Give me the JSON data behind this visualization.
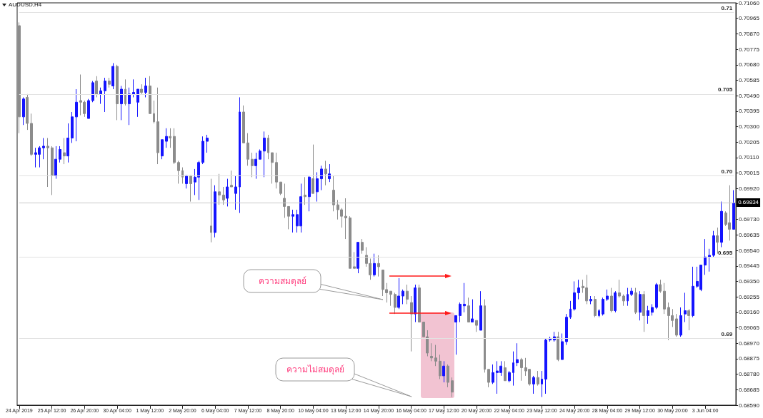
{
  "chart_data": {
    "type": "candlestick",
    "title": "AUDUSD,H4",
    "categories": [
      "24 Apr 2019",
      null,
      null,
      null,
      null,
      null,
      null,
      null,
      "25 Apr 12:00",
      null,
      null,
      null,
      null,
      null,
      null,
      null,
      "26 Apr 20:00",
      null,
      null,
      null,
      null,
      null,
      null,
      null,
      "30 Apr 04:00",
      null,
      null,
      null,
      null,
      null,
      null,
      null,
      "1 May 12:00",
      null,
      null,
      null,
      null,
      null,
      null,
      null,
      "2 May 20:00",
      null,
      null,
      null,
      null,
      null,
      null,
      null,
      "6 May 04:00",
      null,
      null,
      null,
      null,
      null,
      null,
      null,
      "7 May 12:00",
      null,
      null,
      null,
      null,
      null,
      null,
      null,
      "8 May 20:00",
      null,
      null,
      null,
      null,
      null,
      null,
      null,
      "10 May 04:00",
      null,
      null,
      null,
      null,
      null,
      null,
      null,
      "13 May 12:00",
      null,
      null,
      null,
      null,
      null,
      null,
      null,
      "14 May 20:00",
      null,
      null,
      null,
      null,
      null,
      null,
      null,
      "16 May 04:00",
      null,
      null,
      null,
      null,
      null,
      null,
      null,
      "17 May 12:00",
      null,
      null,
      null,
      null,
      null,
      null,
      null,
      "20 May 20:00",
      null,
      null,
      null,
      null,
      null,
      null,
      null,
      "22 May 04:00",
      null,
      null,
      null,
      null,
      null,
      null,
      null,
      "23 May 12:00",
      null,
      null,
      null,
      null,
      null,
      null,
      null,
      "24 May 20:00",
      null,
      null,
      null,
      null,
      null,
      null,
      null,
      "28 May 04:00",
      null,
      null,
      null,
      null,
      null,
      null,
      null,
      "29 May 12:00",
      null,
      null,
      null,
      null,
      null,
      null,
      null,
      "30 May 20:00",
      null,
      null,
      null,
      null,
      null,
      null,
      null,
      "3 Jun 04:00",
      null,
      null,
      null,
      null,
      null,
      null,
      null
    ],
    "ohlc": [
      [
        0.7092,
        0.7094,
        0.7026,
        0.7036
      ],
      [
        0.7036,
        0.7048,
        0.7031,
        0.7047
      ],
      [
        0.7048,
        0.705,
        0.7028,
        0.7032
      ],
      [
        0.7032,
        0.7038,
        0.7012,
        0.7013
      ],
      [
        0.7013,
        0.7017,
        0.7005,
        0.7014
      ],
      [
        0.7013,
        0.7018,
        0.7005,
        0.7017
      ],
      [
        0.7017,
        0.7023,
        0.701,
        0.7018
      ],
      [
        0.7018,
        0.7023,
        0.6993,
        0.7017
      ],
      [
        0.7017,
        0.7018,
        0.6988,
        0.7
      ],
      [
        0.7,
        0.7018,
        0.6998,
        0.701
      ],
      [
        0.701,
        0.7018,
        0.7008,
        0.7016
      ],
      [
        0.7014,
        0.7023,
        0.7007,
        0.7012
      ],
      [
        0.7012,
        0.7032,
        0.7008,
        0.7023
      ],
      [
        0.7023,
        0.7039,
        0.702,
        0.7036
      ],
      [
        0.7036,
        0.7053,
        0.7021,
        0.7045
      ],
      [
        0.7046,
        0.7062,
        0.7037,
        0.7045
      ],
      [
        0.7045,
        0.7046,
        0.7036,
        0.7038
      ],
      [
        0.7035,
        0.7047,
        0.7035,
        0.7046
      ],
      [
        0.7046,
        0.7058,
        0.7045,
        0.7057
      ],
      [
        0.7058,
        0.7061,
        0.7048,
        0.705
      ],
      [
        0.705,
        0.7054,
        0.7044,
        0.7052
      ],
      [
        0.7052,
        0.706,
        0.7039,
        0.7058
      ],
      [
        0.7058,
        0.706,
        0.7054,
        0.7056
      ],
      [
        0.7055,
        0.7069,
        0.7053,
        0.7067
      ],
      [
        0.7067,
        0.7068,
        0.7034,
        0.7044
      ],
      [
        0.7044,
        0.7055,
        0.7034,
        0.7053
      ],
      [
        0.7053,
        0.7059,
        0.7043,
        0.7044
      ],
      [
        0.7044,
        0.7054,
        0.7031,
        0.705
      ],
      [
        0.705,
        0.7059,
        0.7048,
        0.7051
      ],
      [
        0.7045,
        0.7053,
        0.7036,
        0.7053
      ],
      [
        0.7053,
        0.7056,
        0.705,
        0.7051
      ],
      [
        0.7051,
        0.706,
        0.7048,
        0.7055
      ],
      [
        0.7055,
        0.7061,
        0.7038,
        0.7038
      ],
      [
        0.7038,
        0.7046,
        0.7032,
        0.7033
      ],
      [
        0.7033,
        0.7054,
        0.7007,
        0.7014
      ],
      [
        0.7012,
        0.7022,
        0.701,
        0.7022
      ],
      [
        0.7021,
        0.7029,
        0.7017,
        0.7024
      ],
      [
        0.7024,
        0.7029,
        0.7017,
        0.7023
      ],
      [
        0.7024,
        0.7029,
        0.7007,
        0.7008
      ],
      [
        0.7008,
        0.7009,
        0.6995,
        0.7003
      ],
      [
        0.7003,
        0.7005,
        0.6995,
        0.6999
      ],
      [
        0.6995,
        0.7,
        0.6992,
        0.7
      ],
      [
        0.7,
        0.7,
        0.6984,
        0.6995
      ],
      [
        0.6996,
        0.7004,
        0.6988,
        0.6999
      ],
      [
        0.6999,
        0.7009,
        0.6985,
        0.7008
      ],
      [
        0.7008,
        0.7024,
        0.7007,
        0.7021
      ],
      [
        0.7021,
        0.7025,
        0.7014,
        0.7023
      ],
      [
        0.6969,
        0.6998,
        0.6959,
        0.6965
      ],
      [
        0.6965,
        0.6994,
        0.6962,
        0.699
      ],
      [
        0.699,
        0.7001,
        0.6982,
        0.6988
      ],
      [
        0.6988,
        0.6993,
        0.6982,
        0.6985
      ],
      [
        0.6986,
        0.6998,
        0.6981,
        0.6993
      ],
      [
        0.6994,
        0.7003,
        0.6993,
        0.6993
      ],
      [
        0.6989,
        0.7,
        0.6979,
        0.6993
      ],
      [
        0.6993,
        0.7048,
        0.6977,
        0.7039
      ],
      [
        0.7039,
        0.7043,
        0.702,
        0.702
      ],
      [
        0.702,
        0.7026,
        0.7006,
        0.701
      ],
      [
        0.701,
        0.7014,
        0.6999,
        0.7006
      ],
      [
        0.7006,
        0.7014,
        0.6998,
        0.701
      ],
      [
        0.701,
        0.7016,
        0.701,
        0.7015
      ],
      [
        0.7015,
        0.7027,
        0.6999,
        0.7023
      ],
      [
        0.7023,
        0.7025,
        0.701,
        0.7014
      ],
      [
        0.7014,
        0.7014,
        0.6995,
        0.7008
      ],
      [
        0.7008,
        0.7014,
        0.6992,
        0.6996
      ],
      [
        0.6996,
        0.6996,
        0.6988,
        0.6989
      ],
      [
        0.6986,
        0.6995,
        0.6974,
        0.6981
      ],
      [
        0.6981,
        0.6981,
        0.6967,
        0.6975
      ],
      [
        0.6975,
        0.6979,
        0.6965,
        0.6976
      ],
      [
        0.6969,
        0.6979,
        0.6965,
        0.6976
      ],
      [
        0.6969,
        0.6995,
        0.6965,
        0.6987
      ],
      [
        0.6988,
        0.6999,
        0.6982,
        0.6987
      ],
      [
        0.6987,
        0.7,
        0.6978,
        0.6999
      ],
      [
        0.6998,
        0.7019,
        0.6989,
        0.6989
      ],
      [
        0.699,
        0.7002,
        0.6984,
        0.6998
      ],
      [
        0.6998,
        0.7006,
        0.6991,
        0.7004
      ],
      [
        0.7004,
        0.7009,
        0.6994,
        0.7001
      ],
      [
        0.6998,
        0.7007,
        0.6996,
        0.7001
      ],
      [
        0.6991,
        0.7,
        0.6978,
        0.6982
      ],
      [
        0.6982,
        0.6985,
        0.6973,
        0.6979
      ],
      [
        0.6979,
        0.698,
        0.6968,
        0.6975
      ],
      [
        0.6975,
        0.6986,
        0.6961,
        0.6974
      ],
      [
        0.6974,
        0.6975,
        0.6943,
        0.6943
      ],
      [
        0.6944,
        0.6953,
        0.6943,
        0.6943
      ],
      [
        0.6943,
        0.6959,
        0.694,
        0.6959
      ],
      [
        0.6959,
        0.6961,
        0.6952,
        0.6954
      ],
      [
        0.6951,
        0.6956,
        0.6944,
        0.6946
      ],
      [
        0.6946,
        0.6949,
        0.6936,
        0.6939
      ],
      [
        0.6939,
        0.6952,
        0.6938,
        0.6946
      ],
      [
        0.6946,
        0.6951,
        0.6938,
        0.6944
      ],
      [
        0.6942,
        0.6942,
        0.6926,
        0.693
      ],
      [
        0.693,
        0.6934,
        0.6922,
        0.6928
      ],
      [
        0.6929,
        0.6929,
        0.692,
        0.6927
      ],
      [
        0.6927,
        0.6928,
        0.6915,
        0.6919
      ],
      [
        0.6919,
        0.6937,
        0.6918,
        0.6926
      ],
      [
        0.6926,
        0.693,
        0.6921,
        0.6929
      ],
      [
        0.6929,
        0.6933,
        0.6921,
        0.6924
      ],
      [
        0.6922,
        0.6926,
        0.6892,
        0.6915
      ],
      [
        0.6915,
        0.6933,
        0.691,
        0.6931
      ],
      [
        0.6931,
        0.6933,
        0.691,
        0.691
      ],
      [
        0.691,
        0.691,
        0.6901,
        0.6901
      ],
      [
        0.6901,
        0.6905,
        0.6889,
        0.6891
      ],
      [
        0.6889,
        0.6897,
        0.6886,
        0.6888
      ],
      [
        0.6888,
        0.6896,
        0.6883,
        0.6886
      ],
      [
        0.6886,
        0.689,
        0.6875,
        0.6877
      ],
      [
        0.6877,
        0.6886,
        0.6873,
        0.6883
      ],
      [
        0.6883,
        0.6884,
        0.687,
        0.6873
      ],
      [
        0.6874,
        0.6876,
        0.6864,
        0.6867
      ],
      [
        0.691,
        0.6914,
        0.689,
        0.6914
      ],
      [
        0.6914,
        0.6922,
        0.691,
        0.6921
      ],
      [
        0.692,
        0.6934,
        0.6916,
        0.6921
      ],
      [
        0.692,
        0.6925,
        0.691,
        0.691
      ],
      [
        0.691,
        0.6924,
        0.691,
        0.6912
      ],
      [
        0.6911,
        0.6911,
        0.6904,
        0.6908
      ],
      [
        0.6905,
        0.6929,
        0.6905,
        0.692
      ],
      [
        0.692,
        0.6924,
        0.6879,
        0.6881
      ],
      [
        0.6881,
        0.6881,
        0.687,
        0.6873
      ],
      [
        0.6873,
        0.6884,
        0.6872,
        0.6879
      ],
      [
        0.6879,
        0.6886,
        0.6866,
        0.688
      ],
      [
        0.6879,
        0.6886,
        0.6877,
        0.6883
      ],
      [
        0.6882,
        0.6886,
        0.6874,
        0.6874
      ],
      [
        0.6874,
        0.688,
        0.6873,
        0.6879
      ],
      [
        0.6879,
        0.6892,
        0.6871,
        0.6885
      ],
      [
        0.6885,
        0.6897,
        0.6883,
        0.6887
      ],
      [
        0.6887,
        0.6888,
        0.6874,
        0.6882
      ],
      [
        0.6882,
        0.6888,
        0.6877,
        0.688
      ],
      [
        0.6881,
        0.6881,
        0.6871,
        0.6872
      ],
      [
        0.6872,
        0.6877,
        0.6866,
        0.6876
      ],
      [
        0.6876,
        0.688,
        0.6871,
        0.6872
      ],
      [
        0.6872,
        0.688,
        0.6864,
        0.6875
      ],
      [
        0.6875,
        0.69,
        0.6866,
        0.6899
      ],
      [
        0.6899,
        0.6901,
        0.6898,
        0.69
      ],
      [
        0.6899,
        0.6904,
        0.6898,
        0.6901
      ],
      [
        0.6901,
        0.6904,
        0.6886,
        0.6887
      ],
      [
        0.6887,
        0.6903,
        0.6887,
        0.6898
      ],
      [
        0.6898,
        0.6915,
        0.6896,
        0.6913
      ],
      [
        0.6913,
        0.6923,
        0.6912,
        0.6918
      ],
      [
        0.6918,
        0.6935,
        0.6917,
        0.6928
      ],
      [
        0.6928,
        0.6936,
        0.6924,
        0.6931
      ],
      [
        0.6932,
        0.6936,
        0.6928,
        0.6931
      ],
      [
        0.6931,
        0.6939,
        0.6921,
        0.6923
      ],
      [
        0.6923,
        0.6926,
        0.6921,
        0.6924
      ],
      [
        0.6924,
        0.6926,
        0.6913,
        0.6914
      ],
      [
        0.6914,
        0.6918,
        0.6913,
        0.6917
      ],
      [
        0.6915,
        0.6925,
        0.6914,
        0.6924
      ],
      [
        0.6924,
        0.693,
        0.6923,
        0.6926
      ],
      [
        0.6926,
        0.6931,
        0.6916,
        0.6917
      ],
      [
        0.6917,
        0.6929,
        0.6916,
        0.6928
      ],
      [
        0.6928,
        0.6936,
        0.6925,
        0.6926
      ],
      [
        0.6926,
        0.6927,
        0.692,
        0.6923
      ],
      [
        0.6923,
        0.6931,
        0.692,
        0.6927
      ],
      [
        0.6927,
        0.6931,
        0.6926,
        0.6929
      ],
      [
        0.6928,
        0.6931,
        0.6915,
        0.6916
      ],
      [
        0.6916,
        0.6929,
        0.6911,
        0.6927
      ],
      [
        0.6927,
        0.6929,
        0.6904,
        0.6914
      ],
      [
        0.6914,
        0.692,
        0.6909,
        0.6917
      ],
      [
        0.6916,
        0.6921,
        0.6914,
        0.6919
      ],
      [
        0.6919,
        0.6934,
        0.6918,
        0.6933
      ],
      [
        0.6933,
        0.6936,
        0.6928,
        0.6929
      ],
      [
        0.6929,
        0.6934,
        0.6915,
        0.6918
      ],
      [
        0.6919,
        0.6922,
        0.6899,
        0.6914
      ],
      [
        0.6914,
        0.6918,
        0.6907,
        0.6911
      ],
      [
        0.6912,
        0.6915,
        0.6901,
        0.6902
      ],
      [
        0.6902,
        0.6919,
        0.6901,
        0.6914
      ],
      [
        0.6915,
        0.6928,
        0.691,
        0.6917
      ],
      [
        0.6917,
        0.6918,
        0.6905,
        0.6914
      ],
      [
        0.6914,
        0.6944,
        0.6913,
        0.6932
      ],
      [
        0.6932,
        0.6944,
        0.6931,
        0.6935
      ],
      [
        0.693,
        0.6945,
        0.6929,
        0.6945
      ],
      [
        0.6945,
        0.6961,
        0.6939,
        0.695
      ],
      [
        0.695,
        0.6955,
        0.6941,
        0.6951
      ],
      [
        0.6951,
        0.6966,
        0.695,
        0.6963
      ],
      [
        0.6963,
        0.6968,
        0.6952,
        0.6959
      ],
      [
        0.6959,
        0.6984,
        0.6956,
        0.6978
      ],
      [
        0.6977,
        0.6978,
        0.6969,
        0.697
      ],
      [
        0.6971,
        0.6994,
        0.696,
        0.6967
      ],
      [
        0.6967,
        0.6991,
        0.6967,
        0.6983
      ]
    ],
    "colors": [
      "#8c8c8c",
      "#1414ff",
      "#8c8c8c",
      "#8c8c8c",
      "#1414ff",
      "#1414ff",
      "#1414ff",
      "#8c8c8c",
      "#8c8c8c",
      "#1414ff",
      "#1414ff",
      "#8c8c8c",
      "#1414ff",
      "#1414ff",
      "#1414ff",
      "#8c8c8c",
      "#8c8c8c",
      "#1414ff",
      "#1414ff",
      "#8c8c8c",
      "#1414ff",
      "#1414ff",
      "#8c8c8c",
      "#1414ff",
      "#8c8c8c",
      "#1414ff",
      "#8c8c8c",
      "#1414ff",
      "#1414ff",
      "#1414ff",
      "#8c8c8c",
      "#1414ff",
      "#8c8c8c",
      "#8c8c8c",
      "#8c8c8c",
      "#1414ff",
      "#1414ff",
      "#8c8c8c",
      "#8c8c8c",
      "#8c8c8c",
      "#8c8c8c",
      "#1414ff",
      "#8c8c8c",
      "#1414ff",
      "#1414ff",
      "#1414ff",
      "#1414ff",
      "#8c8c8c",
      "#1414ff",
      "#8c8c8c",
      "#8c8c8c",
      "#1414ff",
      "#8c8c8c",
      "#1414ff",
      "#1414ff",
      "#8c8c8c",
      "#8c8c8c",
      "#8c8c8c",
      "#1414ff",
      "#1414ff",
      "#1414ff",
      "#8c8c8c",
      "#8c8c8c",
      "#8c8c8c",
      "#8c8c8c",
      "#8c8c8c",
      "#8c8c8c",
      "#1414ff",
      "#1414ff",
      "#1414ff",
      "#8c8c8c",
      "#1414ff",
      "#8c8c8c",
      "#1414ff",
      "#1414ff",
      "#8c8c8c",
      "#1414ff",
      "#8c8c8c",
      "#8c8c8c",
      "#8c8c8c",
      "#8c8c8c",
      "#8c8c8c",
      "#8c8c8c",
      "#1414ff",
      "#8c8c8c",
      "#8c8c8c",
      "#8c8c8c",
      "#1414ff",
      "#8c8c8c",
      "#8c8c8c",
      "#8c8c8c",
      "#8c8c8c",
      "#8c8c8c",
      "#1414ff",
      "#1414ff",
      "#8c8c8c",
      "#8c8c8c",
      "#1414ff",
      "#8c8c8c",
      "#8c8c8c",
      "#8c8c8c",
      "#8c8c8c",
      "#8c8c8c",
      "#8c8c8c",
      "#1414ff",
      "#8c8c8c",
      "#8c8c8c",
      "#1414ff",
      "#1414ff",
      "#1414ff",
      "#8c8c8c",
      "#1414ff",
      "#8c8c8c",
      "#1414ff",
      "#8c8c8c",
      "#8c8c8c",
      "#1414ff",
      "#1414ff",
      "#1414ff",
      "#8c8c8c",
      "#1414ff",
      "#1414ff",
      "#1414ff",
      "#8c8c8c",
      "#8c8c8c",
      "#8c8c8c",
      "#1414ff",
      "#8c8c8c",
      "#1414ff",
      "#1414ff",
      "#1414ff",
      "#1414ff",
      "#8c8c8c",
      "#1414ff",
      "#1414ff",
      "#1414ff",
      "#1414ff",
      "#1414ff",
      "#8c8c8c",
      "#8c8c8c",
      "#1414ff",
      "#8c8c8c",
      "#1414ff",
      "#1414ff",
      "#1414ff",
      "#8c8c8c",
      "#1414ff",
      "#8c8c8c",
      "#8c8c8c",
      "#1414ff",
      "#1414ff",
      "#8c8c8c",
      "#1414ff",
      "#8c8c8c",
      "#1414ff",
      "#1414ff",
      "#1414ff",
      "#8c8c8c",
      "#8c8c8c",
      "#8c8c8c",
      "#8c8c8c",
      "#8c8c8c",
      "#1414ff",
      "#1414ff",
      "#8c8c8c",
      "#1414ff",
      "#1414ff",
      "#1414ff",
      "#1414ff",
      "#1414ff",
      "#1414ff",
      "#8c8c8c",
      "#1414ff",
      "#8c8c8c",
      "#8c8c8c",
      "#1414ff"
    ],
    "ylim": [
      0.6859,
      0.7106
    ],
    "yticks": [
      {
        "value": 0.7106,
        "label": "0.71060"
      },
      {
        "value": 0.70965,
        "label": "0.70965"
      },
      {
        "value": 0.7087,
        "label": "0.70870"
      },
      {
        "value": 0.70775,
        "label": "0.70775"
      },
      {
        "value": 0.7068,
        "label": "0.70680"
      },
      {
        "value": 0.70585,
        "label": "0.70585"
      },
      {
        "value": 0.7049,
        "label": "0.70490"
      },
      {
        "value": 0.70395,
        "label": "0.70395"
      },
      {
        "value": 0.703,
        "label": "0.70300"
      },
      {
        "value": 0.70205,
        "label": "0.70205"
      },
      {
        "value": 0.7011,
        "label": "0.70110"
      },
      {
        "value": 0.70015,
        "label": "0.70015"
      },
      {
        "value": 0.6992,
        "label": "0.69920"
      },
      {
        "value": 0.69825,
        "label": null
      },
      {
        "value": 0.6973,
        "label": "0.69730"
      },
      {
        "value": 0.69635,
        "label": "0.69635"
      },
      {
        "value": 0.6954,
        "label": "0.69540"
      },
      {
        "value": 0.69445,
        "label": "0.69445"
      },
      {
        "value": 0.6935,
        "label": "0.69350"
      },
      {
        "value": 0.69255,
        "label": "0.69255"
      },
      {
        "value": 0.6916,
        "label": "0.69160"
      },
      {
        "value": 0.69065,
        "label": "0.69065"
      },
      {
        "value": 0.6897,
        "label": "0.68970"
      },
      {
        "value": 0.68875,
        "label": "0.68875"
      },
      {
        "value": 0.6878,
        "label": "0.68780"
      },
      {
        "value": 0.68685,
        "label": "0.68685"
      },
      {
        "value": 0.6859,
        "label": "0.68590"
      }
    ],
    "ref_lines": [
      {
        "axis": "y",
        "value": 0.71,
        "label": "0.71"
      },
      {
        "axis": "y",
        "value": 0.705,
        "label": "0.705"
      },
      {
        "axis": "y",
        "value": 0.7,
        "label": "0.70"
      },
      {
        "axis": "y",
        "value": 0.695,
        "label": "0.695"
      },
      {
        "axis": "y",
        "value": 0.69,
        "label": "0.69"
      },
      {
        "axis": "y",
        "value": 0.69834,
        "label": "0.69834"
      }
    ],
    "annotations": [
      "ความสมดุลย์",
      "ความไม่สมดุลย์"
    ]
  }
}
